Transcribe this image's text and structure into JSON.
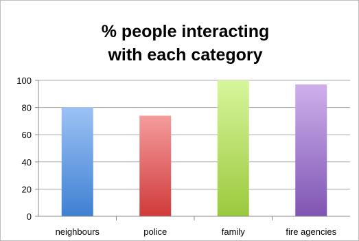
{
  "chart_data": {
    "type": "bar",
    "title_lines": [
      "% people interacting",
      "with each category"
    ],
    "categories": [
      "neighbours",
      "police",
      "family",
      "fire agencies"
    ],
    "values": [
      80,
      74,
      100,
      97
    ],
    "ylim": [
      0,
      100
    ],
    "yticks": [
      0,
      20,
      40,
      60,
      80,
      100
    ],
    "ytick_labels": [
      "0",
      "20",
      "40",
      "60",
      "80",
      "100"
    ],
    "grid": true,
    "legend": "none",
    "colors": [
      {
        "top": "#9cc2f5",
        "bottom": "#3f80d2"
      },
      {
        "top": "#f59c9c",
        "bottom": "#d03a3a"
      },
      {
        "top": "#d8f59c",
        "bottom": "#9bc93d"
      },
      {
        "top": "#cfb0ec",
        "bottom": "#7e55b3"
      }
    ]
  }
}
